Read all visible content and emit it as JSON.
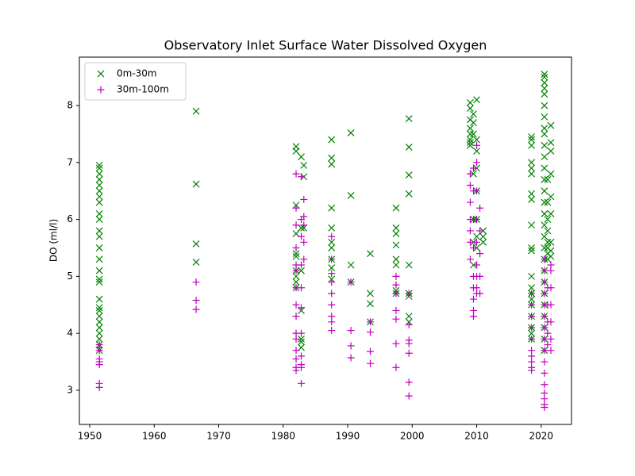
{
  "chart_data": {
    "type": "scatter",
    "title": "Observatory Inlet Surface Water Dissolved Oxygen",
    "y_label": "DO (ml/l)",
    "xlim": [
      1948.4,
      2024.7
    ],
    "ylim": [
      2.4,
      8.85
    ],
    "xticks": [
      1950,
      1960,
      1970,
      1980,
      1990,
      2000,
      2010,
      2020
    ],
    "yticks": [
      3,
      4,
      5,
      6,
      7,
      8
    ],
    "legend": "upper left",
    "series": [
      {
        "name": "0m-30m",
        "color": "#008000",
        "marker": "x",
        "x": [
          1951.5,
          1951.5,
          1951.5,
          1951.5,
          1951.5,
          1951.5,
          1951.5,
          1951.5,
          1951.5,
          1951.5,
          1951.5,
          1951.5,
          1951.5,
          1951.5,
          1951.5,
          1951.5,
          1951.5,
          1951.5,
          1951.5,
          1951.5,
          1951.5,
          1951.5,
          1951.5,
          1951.5,
          1951.5,
          1951.5,
          1951.5,
          1966.5,
          1966.5,
          1966.5,
          1966.5,
          1982,
          1982,
          1982,
          1982,
          1982,
          1982,
          1982,
          1982,
          1982,
          1982,
          1982.8,
          1982.8,
          1982.8,
          1982.8,
          1982.8,
          1982.8,
          1982.8,
          1983.2,
          1983.2,
          1983.2,
          1987.5,
          1987.5,
          1987.5,
          1987.5,
          1987.5,
          1987.5,
          1987.5,
          1987.5,
          1987.5,
          1987.5,
          1990.5,
          1990.5,
          1990.5,
          1990.5,
          1993.5,
          1993.5,
          1993.5,
          1993.5,
          1997.5,
          1997.5,
          1997.5,
          1997.5,
          1997.5,
          1997.5,
          1997.5,
          1997.5,
          1999.5,
          1999.5,
          1999.5,
          1999.5,
          1999.5,
          1999.5,
          1999.5,
          1999.5,
          1999.5,
          2009,
          2009,
          2009,
          2009,
          2009,
          2009,
          2009,
          2009,
          2009.5,
          2009.5,
          2009.5,
          2009.5,
          2009.5,
          2009.5,
          2009.5,
          2010,
          2010,
          2010,
          2010,
          2010,
          2010,
          2010,
          2010,
          2011,
          2011,
          2011,
          2018.5,
          2018.5,
          2018.5,
          2018.5,
          2018.5,
          2018.5,
          2018.5,
          2018.5,
          2018.5,
          2018.5,
          2018.5,
          2018.5,
          2018.5,
          2018.5,
          2018.5,
          2018.5,
          2018.5,
          2018.5,
          2018.5,
          2018.5,
          2020.5,
          2020.5,
          2020.5,
          2020.5,
          2020.5,
          2020.5,
          2020.5,
          2020.5,
          2020.5,
          2020.5,
          2020.5,
          2020.5,
          2020.5,
          2020.5,
          2020.5,
          2020.5,
          2020.5,
          2020.5,
          2020.5,
          2020.5,
          2020.5,
          2020.5,
          2020.5,
          2020.5,
          2020.5,
          2020.5,
          2020.5,
          2020.5,
          2021,
          2021,
          2021,
          2021,
          2021,
          2021,
          2021,
          2021,
          2021.5,
          2021.5,
          2021.5,
          2021.5,
          2021.5,
          2021.5,
          2021.5,
          2021.5,
          2021.5
        ],
        "values": [
          6.95,
          6.9,
          6.8,
          6.7,
          6.6,
          6.5,
          6.4,
          6.3,
          6.1,
          6.0,
          5.8,
          5.7,
          5.5,
          5.3,
          5.1,
          4.95,
          4.9,
          4.6,
          4.45,
          4.4,
          4.3,
          4.2,
          4.1,
          4.0,
          3.9,
          3.8,
          3.7,
          7.9,
          6.62,
          5.57,
          5.25,
          7.28,
          7.2,
          6.25,
          5.75,
          5.4,
          5.35,
          5.1,
          5.0,
          4.9,
          4.8,
          7.1,
          5.85,
          5.1,
          4.4,
          3.9,
          3.85,
          3.75,
          6.95,
          6.75,
          5.85,
          7.4,
          7.08,
          6.97,
          6.2,
          5.85,
          5.6,
          5.5,
          5.3,
          5.15,
          4.95,
          7.52,
          6.42,
          5.2,
          4.9,
          5.4,
          4.7,
          4.52,
          4.2,
          6.2,
          5.85,
          5.75,
          5.55,
          5.3,
          5.2,
          4.75,
          4.7,
          7.77,
          7.27,
          6.78,
          6.45,
          5.2,
          4.7,
          4.65,
          4.3,
          4.2,
          8.05,
          7.95,
          7.75,
          7.6,
          7.5,
          7.4,
          7.35,
          7.3,
          7.85,
          7.7,
          7.5,
          6.8,
          6.0,
          5.6,
          5.2,
          8.1,
          7.4,
          7.2,
          6.9,
          6.5,
          6.0,
          5.7,
          5.5,
          5.8,
          5.7,
          5.6,
          7.45,
          7.4,
          7.3,
          7.0,
          6.9,
          6.8,
          6.45,
          6.35,
          5.9,
          5.5,
          5.45,
          5.0,
          4.8,
          4.7,
          4.6,
          4.5,
          4.3,
          4.1,
          4.0,
          3.9,
          8.55,
          8.5,
          8.4,
          8.3,
          8.2,
          8.0,
          7.8,
          7.6,
          7.5,
          7.3,
          7.1,
          6.9,
          6.7,
          6.5,
          6.3,
          6.1,
          5.9,
          5.7,
          5.5,
          5.3,
          5.1,
          4.9,
          4.7,
          4.5,
          4.3,
          4.1,
          3.9,
          3.7,
          6.7,
          6.3,
          6.0,
          5.8,
          5.6,
          5.5,
          5.4,
          5.3,
          7.65,
          7.35,
          7.2,
          6.8,
          6.4,
          6.1,
          5.6,
          5.45,
          5.35
        ]
      },
      {
        "name": "30m-100m",
        "color": "#bf00bf",
        "marker": "+",
        "x": [
          1951.5,
          1951.5,
          1951.5,
          1951.5,
          1951.5,
          1951.5,
          1951.5,
          1951.5,
          1966.5,
          1966.5,
          1966.5,
          1982,
          1982,
          1982,
          1982,
          1982,
          1982,
          1982,
          1982,
          1982,
          1982,
          1982,
          1982,
          1982,
          1982,
          1982,
          1982.8,
          1982.8,
          1982.8,
          1982.8,
          1982.8,
          1982.8,
          1982.8,
          1982.8,
          1982.8,
          1982.8,
          1982.8,
          1983.2,
          1983.2,
          1983.2,
          1983.2,
          1983.2,
          1987.5,
          1987.5,
          1987.5,
          1987.5,
          1987.5,
          1987.5,
          1987.5,
          1987.5,
          1987.5,
          1990.5,
          1990.5,
          1990.5,
          1990.5,
          1993.5,
          1993.5,
          1993.5,
          1993.5,
          1997.5,
          1997.5,
          1997.5,
          1997.5,
          1997.5,
          1997.5,
          1997.5,
          1999.5,
          1999.5,
          1999.5,
          1999.5,
          1999.5,
          1999.5,
          1999.5,
          2009,
          2009,
          2009,
          2009,
          2009,
          2009,
          2009,
          2009.5,
          2009.5,
          2009.5,
          2009.5,
          2009.5,
          2009.5,
          2009.5,
          2009.5,
          2009.5,
          2010,
          2010,
          2010,
          2010,
          2010,
          2010,
          2010,
          2010,
          2010,
          2010.5,
          2010.5,
          2010.5,
          2010.5,
          2010.5,
          2018.5,
          2018.5,
          2018.5,
          2018.5,
          2018.5,
          2018.5,
          2018.5,
          2018.5,
          2018.5,
          2018.5,
          2020.5,
          2020.5,
          2020.5,
          2020.5,
          2020.5,
          2020.5,
          2020.5,
          2020.5,
          2020.5,
          2020.5,
          2020.5,
          2020.5,
          2020.5,
          2020.5,
          2020.5,
          2020.5,
          2021,
          2021,
          2021,
          2021,
          2021,
          2021.5,
          2021.5,
          2021.5,
          2021.5,
          2021.5,
          2021.5,
          2021.5
        ],
        "values": [
          3.75,
          3.7,
          3.55,
          3.5,
          3.45,
          3.12,
          3.05,
          3.8,
          4.9,
          4.58,
          4.42,
          6.8,
          6.2,
          5.9,
          5.5,
          5.2,
          5.1,
          4.8,
          4.5,
          4.3,
          4.0,
          3.9,
          3.7,
          3.55,
          3.4,
          3.35,
          6.75,
          6.0,
          5.7,
          5.2,
          4.8,
          4.45,
          4.0,
          3.6,
          3.45,
          3.4,
          3.12,
          6.35,
          6.05,
          5.9,
          5.6,
          5.3,
          5.7,
          5.3,
          5.05,
          4.9,
          4.7,
          4.5,
          4.3,
          4.2,
          4.05,
          4.9,
          4.05,
          3.78,
          3.57,
          4.2,
          4.02,
          3.68,
          3.47,
          5.0,
          4.85,
          4.7,
          4.4,
          4.25,
          3.82,
          3.4,
          4.7,
          4.15,
          3.88,
          3.82,
          3.65,
          3.14,
          2.9,
          6.8,
          6.6,
          6.3,
          6.0,
          5.8,
          5.6,
          5.3,
          6.9,
          6.5,
          6.0,
          5.5,
          5.0,
          4.8,
          4.6,
          4.4,
          4.3,
          7.3,
          7.0,
          6.5,
          6.0,
          5.6,
          5.2,
          5.0,
          4.8,
          4.7,
          6.2,
          5.8,
          5.4,
          5.0,
          4.7,
          4.7,
          4.5,
          4.3,
          4.1,
          3.9,
          3.7,
          3.6,
          3.5,
          3.4,
          3.35,
          5.3,
          5.1,
          4.9,
          4.7,
          4.5,
          4.3,
          4.1,
          3.9,
          3.7,
          3.5,
          3.3,
          3.1,
          2.95,
          2.85,
          2.75,
          2.7,
          4.8,
          4.5,
          4.2,
          4.0,
          3.8,
          5.2,
          5.1,
          4.8,
          4.5,
          4.2,
          3.9,
          3.7
        ]
      }
    ]
  }
}
